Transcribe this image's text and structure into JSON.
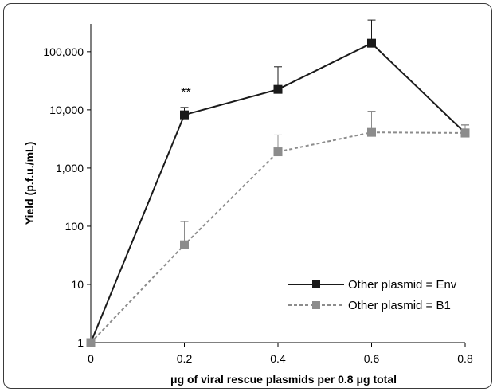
{
  "chart_data": {
    "type": "line",
    "title": "",
    "xlabel": "μg of viral rescue plasmids per 0.8 μg total",
    "ylabel": "Yield (p.f.u./mL)",
    "x": [
      0,
      0.2,
      0.4,
      0.6,
      0.8
    ],
    "x_tick_labels": [
      "0",
      "0.2",
      "0.4",
      "0.6",
      "0.8"
    ],
    "xlim": [
      0,
      0.8
    ],
    "y_scale": "log",
    "ylim": [
      1,
      300000
    ],
    "y_ticks": [
      1,
      10,
      100,
      1000,
      10000,
      100000
    ],
    "y_tick_labels": [
      "1",
      "10",
      "100",
      "1,000",
      "10,000",
      "100,000"
    ],
    "grid": false,
    "legend_position": "bottom-right",
    "series": [
      {
        "name": "Other plasmid = Env",
        "color": "#1a1a1a",
        "line_style": "solid",
        "values": [
          1,
          8200,
          22500,
          140000,
          4000
        ],
        "error_upper": [
          null,
          11000,
          55000,
          350000,
          5500
        ]
      },
      {
        "name": "Other plasmid = B1",
        "color": "#8c8c8c",
        "line_style": "dashed",
        "values": [
          1,
          48,
          1900,
          4100,
          4000
        ],
        "error_upper": [
          null,
          120,
          3700,
          9500,
          5500
        ]
      }
    ],
    "annotations": [
      {
        "text": "**",
        "x": 0.2,
        "y": 17000
      }
    ]
  }
}
